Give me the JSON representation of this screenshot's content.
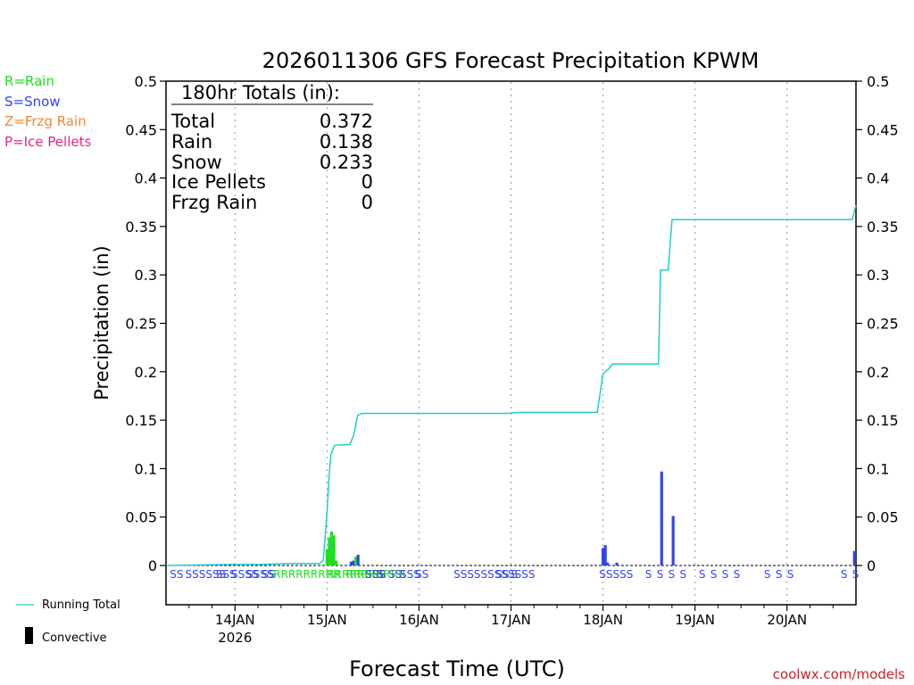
{
  "colors": {
    "rain": "#22dd22",
    "snow": "#3344ee",
    "frzg_rain": "#ee8833",
    "ice_pellets": "#ee2288",
    "running_total": "#22cccc",
    "convective": "#000000",
    "credit": "#cc2222"
  },
  "legend": {
    "rain": "R=Rain",
    "snow": "S=Snow",
    "frzg_rain": "Z=Frzg Rain",
    "ice_pellets": "P=Ice Pellets",
    "running_total": "Running Total",
    "convective": "Convective"
  },
  "totals": {
    "header": "180hr Totals (in):",
    "rows": [
      {
        "label": "Total",
        "value": "0.372"
      },
      {
        "label": "Rain",
        "value": "0.138"
      },
      {
        "label": "Snow",
        "value": "0.233"
      },
      {
        "label": "Ice Pellets",
        "value": "0"
      },
      {
        "label": "Frzg Rain",
        "value": "0"
      }
    ]
  },
  "credit": "coolwx.com/models",
  "chart_data": {
    "type": "bar",
    "title": "2026011306 GFS Forecast Precipitation KPWM",
    "xlabel": "Forecast Time (UTC)",
    "ylabel": "Precipitation (in)",
    "ylim": [
      0,
      0.5
    ],
    "y_ticks": [
      "0",
      "0.05",
      "0.1",
      "0.15",
      "0.2",
      "0.25",
      "0.3",
      "0.35",
      "0.4",
      "0.45",
      "0.5"
    ],
    "xlim_hours": [
      6,
      186
    ],
    "x_ticks": [
      {
        "hour": 24,
        "label": "14JAN",
        "sublabel": "2026"
      },
      {
        "hour": 48,
        "label": "15JAN"
      },
      {
        "hour": 72,
        "label": "16JAN"
      },
      {
        "hour": 96,
        "label": "17JAN"
      },
      {
        "hour": 120,
        "label": "18JAN"
      },
      {
        "hour": 144,
        "label": "19JAN"
      },
      {
        "hour": 168,
        "label": "20JAN"
      }
    ],
    "bars": [
      {
        "hour": 48,
        "value": 0.017,
        "type": "rain"
      },
      {
        "hour": 48.6,
        "value": 0.029,
        "type": "rain"
      },
      {
        "hour": 49.2,
        "value": 0.035,
        "type": "rain"
      },
      {
        "hour": 49.8,
        "value": 0.031,
        "type": "rain"
      },
      {
        "hour": 50.4,
        "value": 0.005,
        "type": "rain"
      },
      {
        "hour": 54.3,
        "value": 0.004,
        "type": "snow"
      },
      {
        "hour": 54.9,
        "value": 0.005,
        "type": "snow"
      },
      {
        "hour": 55.5,
        "value": 0.009,
        "type": "rain"
      },
      {
        "hour": 56.1,
        "value": 0.011,
        "type": "snow"
      },
      {
        "hour": 120,
        "value": 0.018,
        "type": "snow"
      },
      {
        "hour": 120.6,
        "value": 0.021,
        "type": "snow"
      },
      {
        "hour": 121.2,
        "value": 0.003,
        "type": "snow"
      },
      {
        "hour": 123.6,
        "value": 0.003,
        "type": "snow"
      },
      {
        "hour": 135.3,
        "value": 0.097,
        "type": "snow"
      },
      {
        "hour": 138.3,
        "value": 0.051,
        "type": "snow"
      },
      {
        "hour": 185.6,
        "value": 0.015,
        "type": "snow"
      }
    ],
    "running_total": [
      [
        6,
        0
      ],
      [
        22,
        0.001
      ],
      [
        30,
        0.001
      ],
      [
        39,
        0.002
      ],
      [
        46,
        0.002
      ],
      [
        47,
        0.005
      ],
      [
        48,
        0.055
      ],
      [
        48.5,
        0.09
      ],
      [
        49,
        0.115
      ],
      [
        50,
        0.124
      ],
      [
        54,
        0.125
      ],
      [
        55,
        0.135
      ],
      [
        56,
        0.155
      ],
      [
        57,
        0.157
      ],
      [
        95,
        0.157
      ],
      [
        98,
        0.158
      ],
      [
        118.5,
        0.158
      ],
      [
        120,
        0.198
      ],
      [
        121.5,
        0.203
      ],
      [
        122.5,
        0.208
      ],
      [
        134.5,
        0.208
      ],
      [
        135,
        0.305
      ],
      [
        137,
        0.305
      ],
      [
        138,
        0.357
      ],
      [
        185,
        0.357
      ],
      [
        186,
        0.372
      ]
    ],
    "ptype_row": [
      {
        "hour": 7,
        "text": "SS",
        "type": "snow"
      },
      {
        "hour": 11,
        "text": "SSSSSS",
        "type": "snow"
      },
      {
        "hour": 19,
        "text": "SSS",
        "type": "snow"
      },
      {
        "hour": 23,
        "text": "SSSS",
        "type": "snow"
      },
      {
        "hour": 27,
        "text": "SSSS",
        "type": "snow"
      },
      {
        "hour": 31,
        "text": "SS",
        "type": "snow"
      },
      {
        "hour": 34,
        "text": "RRRRRRRRR",
        "type": "rain"
      },
      {
        "hour": 48,
        "text": "RRRRRRRR",
        "type": "rain"
      },
      {
        "hour": 53,
        "text": "RRRRRRRR",
        "type": "rain"
      },
      {
        "hour": 58,
        "text": "SSS",
        "type": "snow"
      },
      {
        "hour": 61,
        "text": "S",
        "type": "snow"
      },
      {
        "hour": 64,
        "text": "SS",
        "type": "snow"
      },
      {
        "hour": 67,
        "text": "SSS",
        "type": "snow"
      },
      {
        "hour": 71,
        "text": "SS",
        "type": "snow"
      },
      {
        "hour": 81,
        "text": "SSSSSSSSSSSS",
        "type": "snow"
      },
      {
        "hour": 92,
        "text": "SS",
        "type": "snow"
      },
      {
        "hour": 96,
        "text": "S",
        "type": "snow"
      },
      {
        "hour": 119,
        "text": "SSSSS",
        "type": "snow"
      },
      {
        "hour": 131,
        "text": "S",
        "type": "snow"
      },
      {
        "hour": 134,
        "text": "S",
        "type": "snow"
      },
      {
        "hour": 137,
        "text": "S",
        "type": "snow"
      },
      {
        "hour": 140,
        "text": "S",
        "type": "snow"
      },
      {
        "hour": 145,
        "text": "S",
        "type": "snow"
      },
      {
        "hour": 148,
        "text": "S",
        "type": "snow"
      },
      {
        "hour": 151,
        "text": "S",
        "type": "snow"
      },
      {
        "hour": 154,
        "text": "S",
        "type": "snow"
      },
      {
        "hour": 162,
        "text": "S",
        "type": "snow"
      },
      {
        "hour": 165,
        "text": "S",
        "type": "snow"
      },
      {
        "hour": 168,
        "text": "S",
        "type": "snow"
      },
      {
        "hour": 182,
        "text": "S",
        "type": "snow"
      },
      {
        "hour": 185,
        "text": "S",
        "type": "snow"
      }
    ]
  }
}
